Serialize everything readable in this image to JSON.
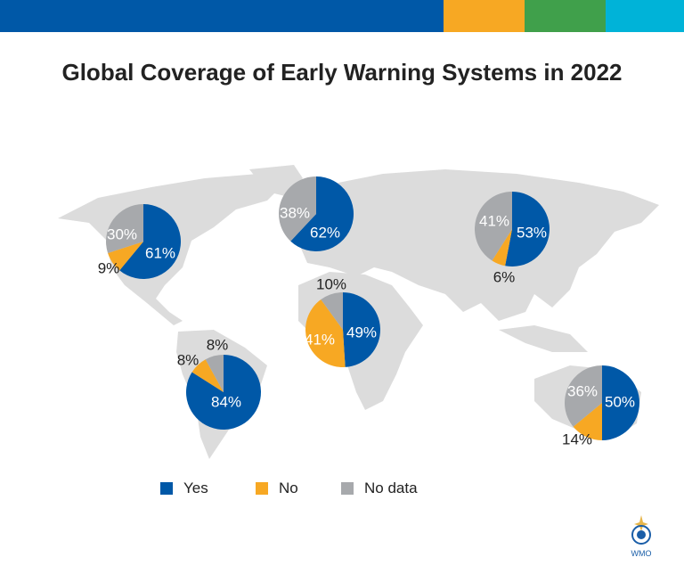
{
  "header_bar_colors": [
    "#0058a7",
    "#f7a823",
    "#40a04b",
    "#00b3d8"
  ],
  "logo": {
    "text": "WMO"
  },
  "chart_data": {
    "type": "pie",
    "title": "Global Coverage of Early Warning Systems in 2022",
    "categories": [
      "Yes",
      "No",
      "No data"
    ],
    "colors": {
      "Yes": "#0058a7",
      "No": "#f7a823",
      "No data": "#a7a9ac"
    },
    "legend_position": "bottom",
    "regions": [
      {
        "region": "North America",
        "values": {
          "Yes": 61,
          "No": 9,
          "No data": 30
        },
        "labels": [
          "61%",
          "9%",
          "30%"
        ]
      },
      {
        "region": "Europe",
        "values": {
          "Yes": 62,
          "No": 0,
          "No data": 38
        },
        "labels": [
          "62%",
          "",
          "38%"
        ]
      },
      {
        "region": "Asia",
        "values": {
          "Yes": 53,
          "No": 6,
          "No data": 41
        },
        "labels": [
          "53%",
          "6%",
          "41%"
        ]
      },
      {
        "region": "Africa",
        "values": {
          "Yes": 49,
          "No": 41,
          "No data": 10
        },
        "labels": [
          "49%",
          "41%",
          "10%"
        ]
      },
      {
        "region": "South America",
        "values": {
          "Yes": 84,
          "No": 8,
          "No data": 8
        },
        "labels": [
          "84%",
          "8%",
          "8%"
        ]
      },
      {
        "region": "Oceania",
        "values": {
          "Yes": 50,
          "No": 14,
          "No data": 36
        },
        "labels": [
          "50%",
          "14%",
          "36%"
        ]
      }
    ]
  }
}
